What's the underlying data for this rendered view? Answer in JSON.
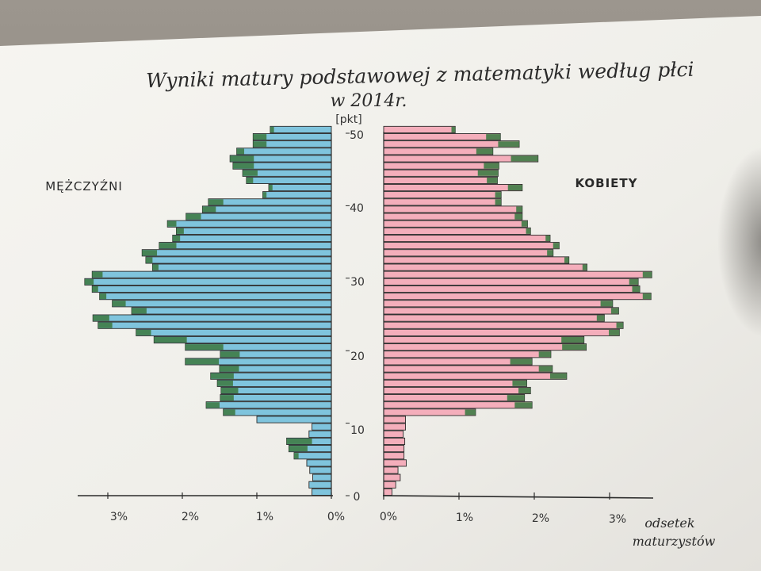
{
  "colors": {
    "male_fill": "#7fc4dd",
    "female_fill": "#f4aebb",
    "excess_fill": "#3f7c46",
    "outline": "#2b2b2b",
    "paper": "#f3f2ee"
  },
  "chart_data": {
    "type": "bar",
    "orientation": "horizontal-pyramid",
    "title": "Wyniki matury podstawowej z matematyki według płci",
    "subtitle": "w 2014r.",
    "ylabel": "[pkt]",
    "xlabel_line1": "odsetek",
    "xlabel_line2": "maturzystów",
    "left_label": "MĘŻCZYŹNI",
    "right_label": "KOBIETY",
    "y_ticks": [
      "0",
      "10",
      "20",
      "30",
      "40",
      "50"
    ],
    "x_ticks_left": [
      "3%",
      "2%",
      "1%",
      "0%"
    ],
    "x_ticks_right": [
      "0%",
      "1%",
      "2%",
      "3%"
    ],
    "xlim": [
      0,
      3.5
    ],
    "ylim": [
      0,
      50
    ],
    "points": [
      0,
      1,
      2,
      3,
      4,
      5,
      6,
      7,
      8,
      9,
      10,
      11,
      12,
      13,
      14,
      15,
      16,
      17,
      18,
      19,
      20,
      21,
      22,
      23,
      24,
      25,
      26,
      27,
      28,
      29,
      30,
      31,
      32,
      33,
      34,
      35,
      36,
      37,
      38,
      39,
      40,
      41,
      42,
      43,
      44,
      45,
      46,
      47,
      48,
      49,
      50
    ],
    "series": [
      {
        "name": "MĘŻCZYŹNI",
        "values": [
          0.26,
          0.3,
          0.25,
          0.29,
          0.33,
          0.5,
          0.57,
          0.6,
          0.3,
          0.26,
          1.0,
          1.45,
          1.68,
          1.49,
          1.48,
          1.53,
          1.62,
          1.5,
          1.96,
          1.49,
          1.96,
          2.38,
          2.62,
          3.13,
          3.2,
          2.68,
          2.94,
          3.11,
          3.21,
          3.31,
          3.21,
          2.4,
          2.49,
          2.54,
          2.31,
          2.13,
          2.08,
          2.2,
          1.95,
          1.73,
          1.65,
          0.92,
          0.84,
          1.14,
          1.19,
          1.32,
          1.36,
          1.27,
          1.05,
          1.05,
          0.82
        ]
      },
      {
        "name": "KOBIETY",
        "values": [
          0.11,
          0.16,
          0.22,
          0.19,
          0.3,
          0.27,
          0.27,
          0.28,
          0.26,
          0.29,
          0.29,
          1.22,
          1.97,
          1.87,
          1.95,
          1.9,
          2.43,
          2.24,
          1.97,
          2.22,
          2.69,
          2.66,
          3.13,
          3.18,
          2.93,
          3.12,
          3.04,
          3.55,
          3.4,
          3.38,
          3.56,
          2.7,
          2.46,
          2.25,
          2.33,
          2.21,
          1.95,
          1.91,
          1.84,
          1.84,
          1.56,
          1.56,
          1.84,
          1.51,
          1.52,
          1.53,
          2.05,
          1.45,
          1.8,
          1.55,
          0.95
        ]
      },
      {
        "name": "excess",
        "values": [
          0,
          0,
          0,
          0,
          0,
          0.06,
          0.25,
          0.34,
          0,
          0,
          0,
          0.16,
          0.18,
          0.18,
          0.23,
          0.21,
          0.31,
          0.26,
          0.45,
          0.26,
          0.51,
          0.44,
          0.2,
          0.19,
          0.22,
          0.2,
          0.18,
          0.09,
          0.08,
          0.12,
          0.14,
          0.08,
          0.09,
          0.2,
          0.23,
          0.1,
          0.1,
          0.12,
          0.2,
          0.18,
          0.2,
          0.05,
          0.05,
          0.09,
          0.2,
          0.28,
          0.32,
          0.1,
          0.18,
          0.18,
          0.05
        ],
        "values_female": [
          0,
          0,
          0,
          0,
          0,
          0,
          0,
          0,
          0,
          0,
          0,
          0.14,
          0.23,
          0.23,
          0.16,
          0.19,
          0.22,
          0.18,
          0.29,
          0.16,
          0.32,
          0.3,
          0.14,
          0.09,
          0.1,
          0.1,
          0.16,
          0.11,
          0.1,
          0.12,
          0.12,
          0.06,
          0.06,
          0.08,
          0.08,
          0.06,
          0.06,
          0.08,
          0.1,
          0.08,
          0.08,
          0.08,
          0.19,
          0.14,
          0.27,
          0.2,
          0.36,
          0.22,
          0.28,
          0.19,
          0.05
        ]
      }
    ]
  }
}
